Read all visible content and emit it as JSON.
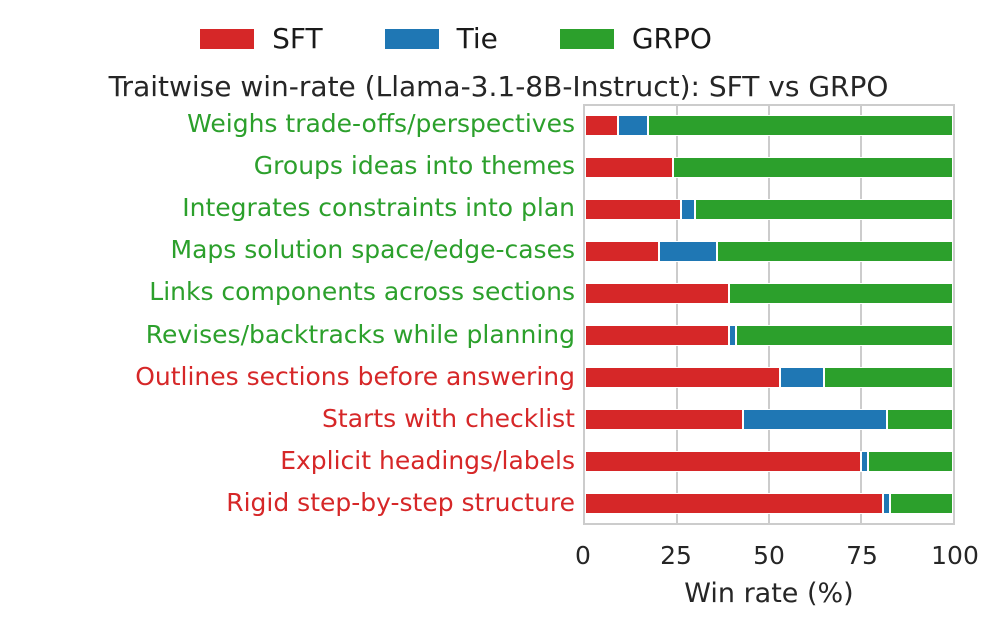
{
  "title": "Traitwise win-rate (Llama-3.1-8B-Instruct): SFT vs GRPO",
  "legend": {
    "items": [
      {
        "label": "SFT",
        "color": "#d62728"
      },
      {
        "label": "Tie",
        "color": "#1f77b4"
      },
      {
        "label": "GRPO",
        "color": "#2ca02c"
      }
    ]
  },
  "chart_data": {
    "type": "bar",
    "stacked": true,
    "orientation": "horizontal",
    "title": "Traitwise win-rate (Llama-3.1-8B-Instruct): SFT vs GRPO",
    "xlabel": "Win rate (%)",
    "ylabel": "",
    "xlim": [
      0,
      100
    ],
    "xticks": [
      0,
      25,
      50,
      75,
      100
    ],
    "grid": true,
    "legend_position": "top",
    "categories": [
      "Weighs trade-offs/perspectives",
      "Groups ideas into themes",
      "Integrates constraints into plan",
      "Maps solution space/edge-cases",
      "Links components across sections",
      "Revises/backtracks while planning",
      "Outlines sections before answering",
      "Starts with checklist",
      "Explicit headings/labels",
      "Rigid step-by-step structure"
    ],
    "category_label_colors": [
      "#2ca02c",
      "#2ca02c",
      "#2ca02c",
      "#2ca02c",
      "#2ca02c",
      "#2ca02c",
      "#d62728",
      "#d62728",
      "#d62728",
      "#d62728"
    ],
    "series": [
      {
        "name": "SFT",
        "color": "#d62728",
        "values": [
          9,
          24,
          26,
          20,
          39,
          39,
          53,
          43,
          75,
          81
        ]
      },
      {
        "name": "Tie",
        "color": "#1f77b4",
        "values": [
          8,
          0,
          4,
          16,
          0,
          2,
          12,
          39,
          2,
          2
        ]
      },
      {
        "name": "GRPO",
        "color": "#2ca02c",
        "values": [
          83,
          76,
          70,
          64,
          61,
          59,
          35,
          18,
          23,
          17
        ]
      }
    ]
  },
  "style": {
    "grid_color": "#cccccc",
    "tick_color": "#262626"
  }
}
